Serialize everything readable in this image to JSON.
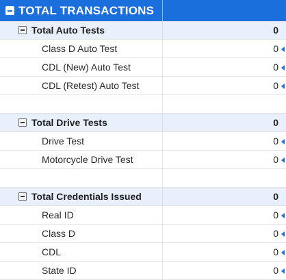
{
  "header": {
    "title": "TOTAL TRANSACTIONS"
  },
  "sections": [
    {
      "label": "Total Auto Tests",
      "value": "0",
      "items": [
        {
          "label": "Class D Auto Test",
          "value": "0"
        },
        {
          "label": "CDL (New) Auto Test",
          "value": "0"
        },
        {
          "label": "CDL (Retest) Auto Test",
          "value": "0"
        }
      ]
    },
    {
      "label": "Total Drive Tests",
      "value": "0",
      "items": [
        {
          "label": "Drive Test",
          "value": "0"
        },
        {
          "label": "Motorcycle Drive Test",
          "value": "0"
        }
      ]
    },
    {
      "label": "Total Credentials Issued",
      "value": "0",
      "items": [
        {
          "label": "Real ID",
          "value": "0"
        },
        {
          "label": "Class D",
          "value": "0"
        },
        {
          "label": "CDL",
          "value": "0"
        },
        {
          "label": "State ID",
          "value": "0"
        }
      ]
    }
  ],
  "colors": {
    "header_bg": "#1a6fdd",
    "section_bg": "#e8f0fc",
    "marker": "#1a6fdd"
  },
  "icons": {
    "header_toggle": "collapse-minus-icon",
    "section_toggle": "collapse-minus-icon",
    "cell_marker": "note-triangle-icon"
  }
}
